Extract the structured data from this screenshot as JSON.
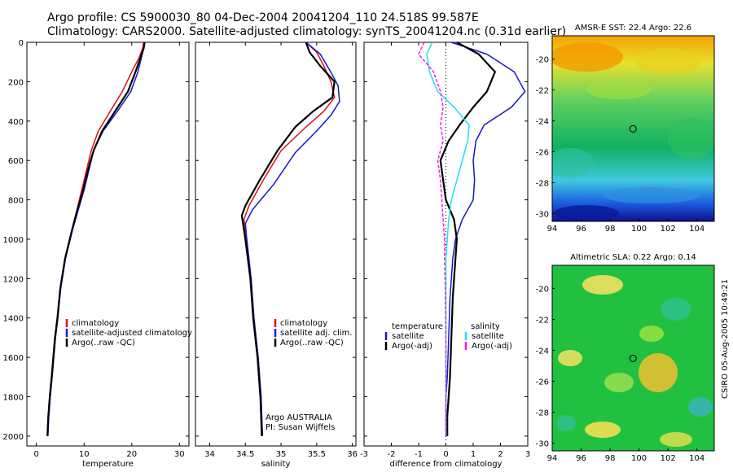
{
  "header": {
    "line1": "Argo profile: CS 5900030_80 04-Dec-2004 20041204_110 24.518S 99.587E",
    "line2": "Climatology: CARS2000. Satellite-adjusted climatology: synTS_20041204.nc (0.31d earlier)"
  },
  "colors": {
    "climatology": "#dd1111",
    "satellite": "#1515d0",
    "argo": "#000000",
    "argo_adj_sal": "#ee22dd",
    "satellite_sal": "#22ddee"
  },
  "chart_data": [
    {
      "type": "line",
      "title": "",
      "xlabel": "temperature",
      "ylabel": "",
      "xlim": [
        -2,
        32
      ],
      "ylim": [
        2050,
        0
      ],
      "xticks": [
        "0",
        "10",
        "20",
        "30"
      ],
      "yticks": [
        "0",
        "200",
        "400",
        "600",
        "800",
        "1000",
        "1200",
        "1400",
        "1600",
        "1800",
        "2000"
      ],
      "legend": [
        "climatology",
        "satellite-adjusted climatology",
        "Argo(..raw -QC)"
      ],
      "series": [
        {
          "name": "climatology",
          "x": [
            22.5,
            22.3,
            21.5,
            20,
            18,
            15.5,
            13,
            11.5,
            10.5,
            9.5,
            8.5,
            7.5,
            6,
            5,
            4.5,
            4,
            3.3,
            2.9,
            2.6,
            2.4
          ],
          "y": [
            0,
            30,
            80,
            150,
            250,
            350,
            450,
            550,
            650,
            750,
            850,
            950,
            1100,
            1250,
            1400,
            1500,
            1700,
            1800,
            1900,
            2000
          ]
        },
        {
          "name": "satellite-adjusted climatology",
          "x": [
            22.6,
            22.5,
            22,
            21.3,
            19.8,
            17,
            14,
            12,
            11,
            10,
            8.8,
            7.6,
            6.1,
            5.1,
            4.5,
            4,
            3.3,
            2.9,
            2.6,
            2.4
          ],
          "y": [
            0,
            30,
            80,
            150,
            250,
            350,
            450,
            550,
            650,
            750,
            850,
            950,
            1100,
            1250,
            1400,
            1500,
            1700,
            1800,
            1900,
            2000
          ]
        },
        {
          "name": "Argo(..raw -QC)",
          "x": [
            22.7,
            22.5,
            21.8,
            20.8,
            19.2,
            16.5,
            13.8,
            12,
            10.8,
            9.8,
            8.6,
            7.5,
            6,
            5,
            4.4,
            3.9,
            3.2,
            2.8,
            2.5,
            2.3
          ],
          "y": [
            0,
            30,
            80,
            150,
            250,
            350,
            450,
            550,
            650,
            750,
            850,
            950,
            1100,
            1250,
            1400,
            1500,
            1700,
            1800,
            1900,
            2000
          ]
        }
      ]
    },
    {
      "type": "line",
      "title": "",
      "xlabel": "salinity",
      "ylabel": "",
      "xlim": [
        33.8,
        36.05
      ],
      "ylim": [
        2050,
        0
      ],
      "xticks": [
        "34",
        "34.5",
        "35",
        "35.5",
        "36"
      ],
      "legend": [
        "climatology",
        "satellite adj. clim.",
        "Argo(..raw -QC)"
      ],
      "annotations": [
        "Argo AUSTRALIA",
        "PI: Susan Wijffels"
      ],
      "series": [
        {
          "name": "climatology",
          "x": [
            35.35,
            35.5,
            35.6,
            35.7,
            35.75,
            35.6,
            35.35,
            35.0,
            34.75,
            34.55,
            34.48,
            34.52,
            34.58,
            34.62,
            34.65,
            34.68,
            34.7,
            34.72,
            34.73,
            34.74
          ],
          "y": [
            0,
            50,
            120,
            200,
            280,
            350,
            430,
            550,
            700,
            830,
            900,
            1000,
            1200,
            1400,
            1500,
            1600,
            1700,
            1800,
            1900,
            2000
          ]
        },
        {
          "name": "satellite adj. clim.",
          "x": [
            35.35,
            35.55,
            35.68,
            35.8,
            35.82,
            35.7,
            35.5,
            35.2,
            34.9,
            34.6,
            34.5,
            34.52,
            34.58,
            34.62,
            34.65,
            34.68,
            34.7,
            34.72,
            34.73,
            34.74
          ],
          "y": [
            0,
            60,
            140,
            220,
            300,
            370,
            450,
            560,
            720,
            850,
            920,
            1000,
            1200,
            1400,
            1500,
            1600,
            1700,
            1800,
            1900,
            2000
          ]
        },
        {
          "name": "Argo(..raw -QC)",
          "x": [
            35.35,
            35.4,
            35.55,
            35.75,
            35.72,
            35.45,
            35.2,
            34.95,
            34.7,
            34.5,
            34.45,
            34.5,
            34.57,
            34.61,
            34.64,
            34.67,
            34.69,
            34.71,
            34.72,
            34.73
          ],
          "y": [
            0,
            50,
            120,
            200,
            280,
            350,
            430,
            550,
            700,
            830,
            880,
            1000,
            1200,
            1400,
            1500,
            1600,
            1700,
            1800,
            1900,
            2000
          ]
        }
      ]
    },
    {
      "type": "line",
      "title": "",
      "xlabel": "difference from climatology",
      "ylabel": "",
      "xlim": [
        -3,
        3
      ],
      "ylim": [
        2050,
        0
      ],
      "xticks": [
        "-3",
        "-2",
        "-1",
        "0",
        "1",
        "2",
        "3"
      ],
      "legend_left_title": "temperature",
      "legend_right_title": "salinity",
      "legend": [
        "satellite",
        "Argo(-adj)",
        "satellite",
        "Argo(-adj)"
      ],
      "series": [
        {
          "name": "satellite",
          "quantity": "temperature",
          "x": [
            0.2,
            1.5,
            2.5,
            2.9,
            2.4,
            1.4,
            1.1,
            1.0,
            1.05,
            1.0,
            0.6,
            0.35,
            0.25,
            0.2,
            0.15,
            0.1,
            0.05,
            0.0,
            0.0,
            0.0
          ],
          "y": [
            0,
            60,
            150,
            250,
            330,
            420,
            500,
            600,
            700,
            800,
            900,
            1000,
            1100,
            1200,
            1300,
            1500,
            1700,
            1800,
            1900,
            2000
          ]
        },
        {
          "name": "Argo(-adj)",
          "quantity": "temperature",
          "x": [
            0.4,
            1.2,
            1.8,
            1.5,
            1.0,
            0.5,
            0.1,
            -0.2,
            -0.1,
            0.0,
            0.3,
            0.4,
            0.35,
            0.3,
            0.25,
            0.2,
            0.15,
            0.1,
            0.05,
            0.05
          ],
          "y": [
            0,
            60,
            150,
            250,
            330,
            420,
            500,
            600,
            700,
            800,
            900,
            1000,
            1100,
            1200,
            1300,
            1500,
            1700,
            1800,
            1900,
            2000
          ]
        },
        {
          "name": "satellite",
          "quantity": "salinity",
          "x": [
            -0.5,
            -0.7,
            -0.6,
            -0.3,
            0.3,
            0.85,
            0.8,
            0.6,
            0.4,
            0.2,
            0.1,
            0.05,
            0.0,
            0.0,
            0.0,
            0.0,
            0.0,
            0.0,
            0.0,
            0.0
          ],
          "y": [
            0,
            60,
            150,
            250,
            330,
            420,
            500,
            600,
            700,
            800,
            900,
            1000,
            1100,
            1200,
            1300,
            1500,
            1700,
            1800,
            1900,
            2000
          ]
        },
        {
          "name": "Argo(-adj)",
          "quantity": "salinity",
          "x": [
            -0.8,
            -1.0,
            -0.45,
            -0.2,
            -0.1,
            -0.2,
            -0.1,
            -0.3,
            -0.2,
            -0.15,
            -0.1,
            -0.05,
            -0.05,
            -0.03,
            -0.02,
            0.0,
            0.0,
            0.0,
            0.0,
            0.0
          ],
          "y": [
            0,
            60,
            150,
            250,
            330,
            420,
            500,
            600,
            700,
            800,
            900,
            1000,
            1100,
            1200,
            1300,
            1500,
            1700,
            1800,
            1900,
            2000
          ]
        }
      ]
    },
    {
      "type": "heatmap",
      "title": "AMSR-E SST: 22.4 Argo: 22.6",
      "xlim": [
        94,
        105.2
      ],
      "ylim": [
        -30.5,
        -18.5
      ],
      "xticks": [
        "94",
        "96",
        "98",
        "100",
        "102",
        "104"
      ],
      "yticks": [
        "-20",
        "-22",
        "-24",
        "-26",
        "-28",
        "-30"
      ],
      "marker": {
        "lon": 99.587,
        "lat": -24.518
      }
    },
    {
      "type": "heatmap",
      "title": "Altimetric SLA: 0.22 Argo: 0.14",
      "xlim": [
        94,
        105.2
      ],
      "ylim": [
        -30.5,
        -18.5
      ],
      "xticks": [
        "94",
        "96",
        "98",
        "100",
        "102",
        "104"
      ],
      "yticks": [
        "-20",
        "-22",
        "-24",
        "-26",
        "-28",
        "-30"
      ],
      "marker": {
        "lon": 99.587,
        "lat": -24.518
      }
    }
  ],
  "footer": {
    "stamp": "CSIRO 05-Aug-2005 10:49:21"
  }
}
